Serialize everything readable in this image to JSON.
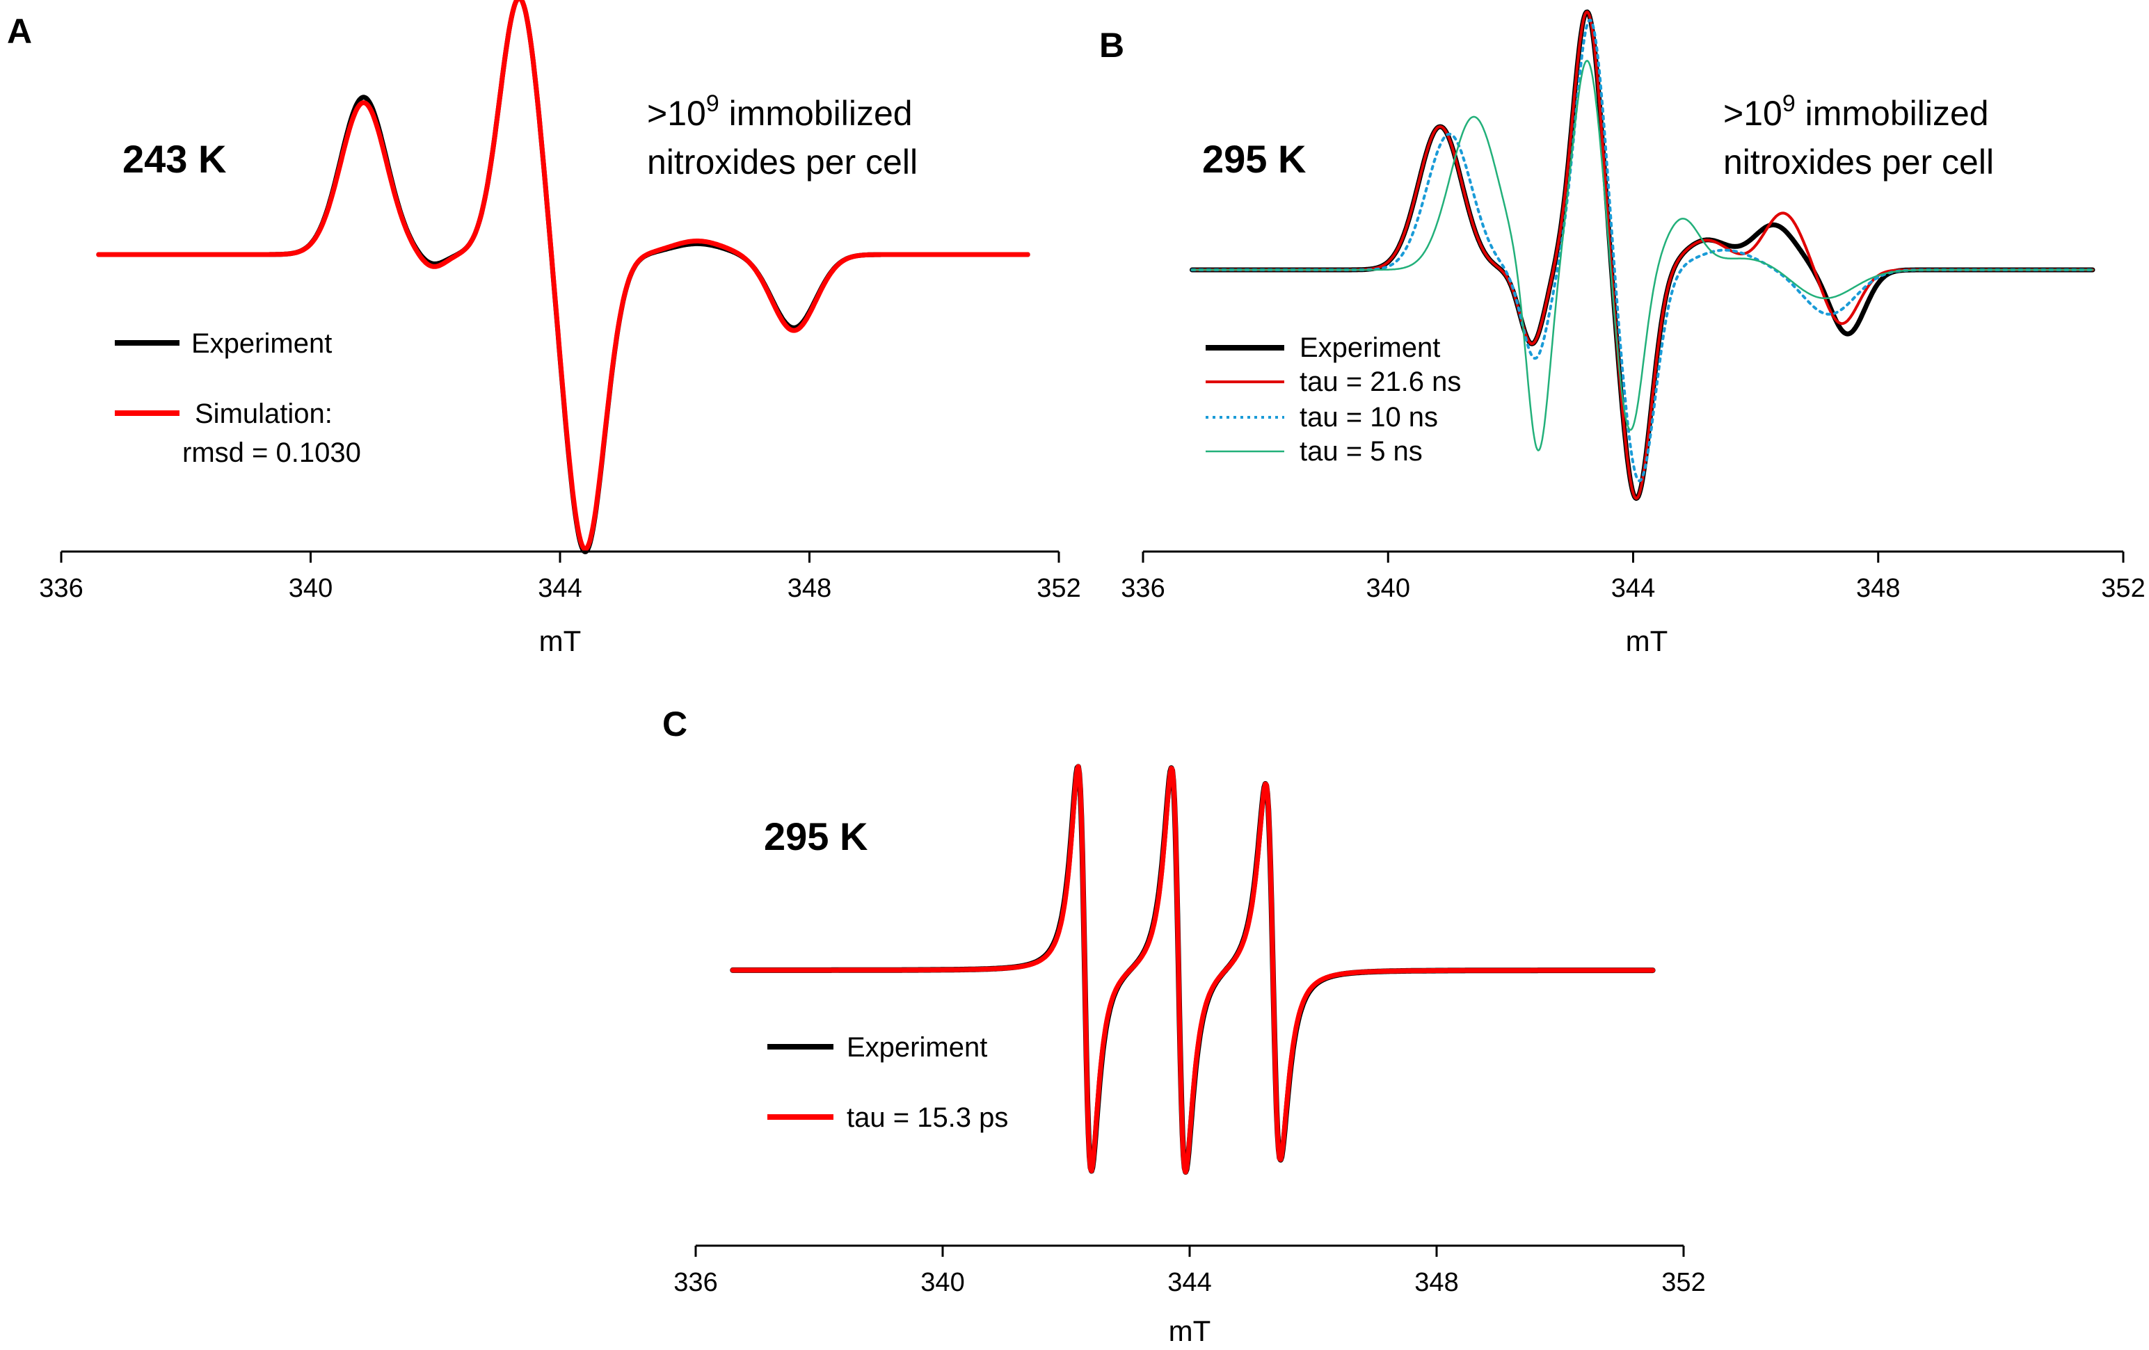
{
  "chart_data": [
    {
      "panel": "A",
      "type": "line",
      "temperature": "243 K",
      "annotation": {
        "prefix": ">10",
        "superscript": "9",
        "line1_suffix": " immobilized",
        "line2": "nitroxides per cell"
      },
      "xlabel": "mT",
      "xlim": [
        336,
        352
      ],
      "xticks": [
        "336",
        "340",
        "344",
        "348",
        "352"
      ],
      "yaxis_visible": false,
      "baseline_level": 0.0,
      "series": [
        {
          "name": "Experiment",
          "color": "#000000",
          "style": "solid",
          "peaks": [
            [
              340.85,
              0.58,
              0.52
            ],
            [
              343.35,
              0.95,
              0.45
            ],
            [
              344.4,
              -1.1,
              0.45
            ],
            [
              346.2,
              0.04,
              0.6
            ],
            [
              347.75,
              -0.27,
              0.5
            ],
            [
              341.95,
              -0.04,
              0.3
            ]
          ]
        },
        {
          "name": "Simulation:",
          "detail": "rmsd = 0.1030",
          "color": "#ff0000",
          "style": "solid",
          "peaks": [
            [
              340.85,
              0.56,
              0.52
            ],
            [
              343.35,
              0.95,
              0.45
            ],
            [
              344.4,
              -1.09,
              0.45
            ],
            [
              346.2,
              0.05,
              0.6
            ],
            [
              347.75,
              -0.28,
              0.5
            ],
            [
              341.95,
              -0.05,
              0.3
            ]
          ]
        }
      ],
      "legend": [
        {
          "label": "Experiment",
          "color": "#000000"
        },
        {
          "label": "Simulation:",
          "label2": "rmsd = 0.1030",
          "color": "#ff0000"
        }
      ]
    },
    {
      "panel": "B",
      "type": "line",
      "temperature": "295 K",
      "annotation": {
        "prefix": ">10",
        "superscript": "9",
        "line1_suffix": " immobilized",
        "line2": "nitroxides per cell"
      },
      "xlabel": "mT",
      "xlim": [
        336,
        352
      ],
      "xticks": [
        "336",
        "340",
        "344",
        "348",
        "352"
      ],
      "yaxis_visible": false,
      "series": [
        {
          "name": "Experiment",
          "color": "#000000",
          "style": "solid",
          "peaks": [
            [
              340.85,
              0.58,
              0.5
            ],
            [
              342.35,
              -0.3,
              0.28
            ],
            [
              343.25,
              1.05,
              0.33
            ],
            [
              344.05,
              -0.93,
              0.35
            ],
            [
              345.2,
              0.12,
              0.55
            ],
            [
              346.3,
              0.18,
              0.5
            ],
            [
              347.5,
              -0.26,
              0.4
            ]
          ]
        },
        {
          "name": "tau = 21.6 ns",
          "color": "#e00000",
          "style": "solid",
          "peaks": [
            [
              340.85,
              0.58,
              0.5
            ],
            [
              342.35,
              -0.3,
              0.28
            ],
            [
              343.25,
              1.05,
              0.33
            ],
            [
              344.05,
              -0.93,
              0.35
            ],
            [
              345.2,
              0.12,
              0.55
            ],
            [
              346.45,
              0.23,
              0.45
            ],
            [
              347.4,
              -0.22,
              0.4
            ]
          ]
        },
        {
          "name": "tau = 10 ns",
          "color": "#1a9bd7",
          "style": "dotted",
          "peaks": [
            [
              341.0,
              0.55,
              0.52
            ],
            [
              342.4,
              -0.36,
              0.3
            ],
            [
              343.3,
              1.02,
              0.34
            ],
            [
              344.1,
              -0.86,
              0.37
            ],
            [
              345.5,
              0.08,
              0.7
            ],
            [
              347.2,
              -0.18,
              0.6
            ]
          ]
        },
        {
          "name": "tau = 5 ns",
          "color": "#22b07a",
          "style": "solid",
          "peaks": [
            [
              341.4,
              0.62,
              0.55
            ],
            [
              342.45,
              -0.75,
              0.26
            ],
            [
              343.25,
              0.85,
              0.33
            ],
            [
              343.95,
              -0.66,
              0.3
            ],
            [
              344.8,
              0.2,
              0.4
            ],
            [
              345.9,
              0.05,
              0.8
            ],
            [
              347.1,
              -0.12,
              0.7
            ]
          ]
        }
      ],
      "legend": [
        {
          "label": "Experiment",
          "color": "#000000",
          "style": "solid",
          "width": 7
        },
        {
          "label": "tau = 21.6 ns",
          "color": "#e00000",
          "style": "solid",
          "width": 4
        },
        {
          "label": "tau = 10 ns",
          "color": "#1a9bd7",
          "style": "dotted",
          "width": 4
        },
        {
          "label": "tau = 5 ns",
          "color": "#22b07a",
          "style": "solid",
          "width": 2.5
        }
      ]
    },
    {
      "panel": "C",
      "type": "line",
      "temperature": "295 K",
      "xlabel": "mT",
      "xlim": [
        336,
        352
      ],
      "xticks": [
        "336",
        "340",
        "344",
        "348",
        "352"
      ],
      "yaxis_visible": false,
      "lines": [
        342.3,
        343.82,
        345.35
      ],
      "series": [
        {
          "name": "Experiment",
          "color": "#000000",
          "style": "solid"
        },
        {
          "name": "tau = 15.3 ps",
          "color": "#ff0000",
          "style": "solid"
        }
      ],
      "legend": [
        {
          "label": "Experiment",
          "color": "#000000"
        },
        {
          "label": "tau = 15.3 ps",
          "color": "#ff0000"
        }
      ]
    }
  ]
}
